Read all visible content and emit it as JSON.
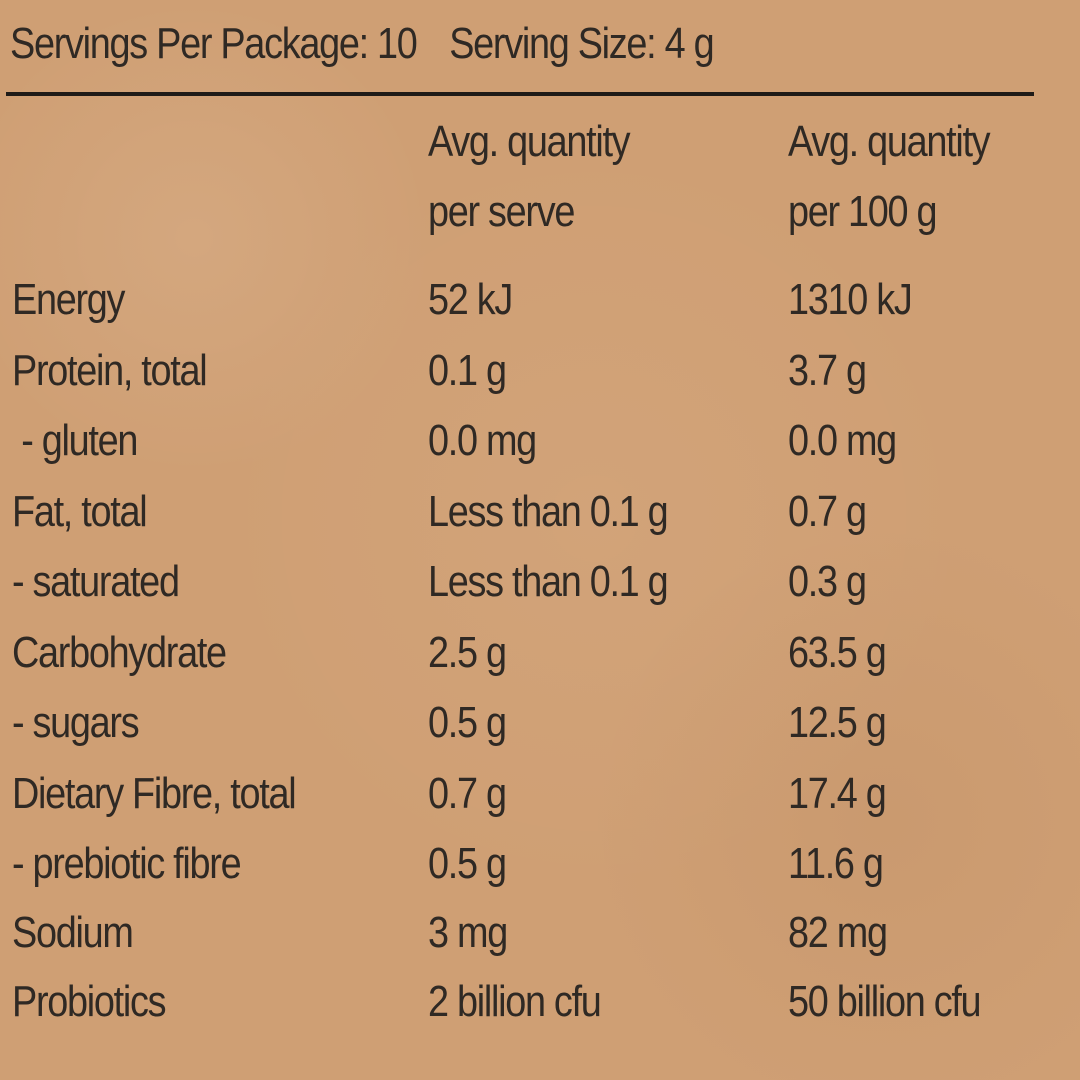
{
  "header": {
    "servings_per_package": "Servings Per Package: 10",
    "serving_size": "Serving Size: 4 g"
  },
  "columns": {
    "per_serve_line1": "Avg. quantity",
    "per_serve_line2": "per serve",
    "per_100g_line1": "Avg. quantity",
    "per_100g_line2": "per 100 g"
  },
  "rows": [
    {
      "label": "Energy",
      "per_serve": "52 kJ",
      "per_100g": "1310 kJ"
    },
    {
      "label": "Protein, total",
      "per_serve": "0.1 g",
      "per_100g": "3.7 g"
    },
    {
      "label": " - gluten",
      "per_serve": "0.0 mg",
      "per_100g": "0.0 mg"
    },
    {
      "label": "Fat, total",
      "per_serve": "Less than 0.1 g",
      "per_100g": "0.7 g"
    },
    {
      "label": "- saturated",
      "per_serve": "Less than 0.1 g",
      "per_100g": "0.3 g"
    },
    {
      "label": "Carbohydrate",
      "per_serve": "2.5 g",
      "per_100g": "63.5 g"
    },
    {
      "label": "- sugars",
      "per_serve": "0.5 g",
      "per_100g": "12.5 g"
    },
    {
      "label": "Dietary Fibre, total",
      "per_serve": "0.7 g",
      "per_100g": "17.4 g"
    },
    {
      "label": "- prebiotic fibre",
      "per_serve": "0.5 g",
      "per_100g": "11.6 g"
    },
    {
      "label": "Sodium",
      "per_serve": "3 mg",
      "per_100g": "82 mg"
    },
    {
      "label": "Probiotics",
      "per_serve": "2 billion cfu",
      "per_100g": "50 billion cfu"
    }
  ]
}
